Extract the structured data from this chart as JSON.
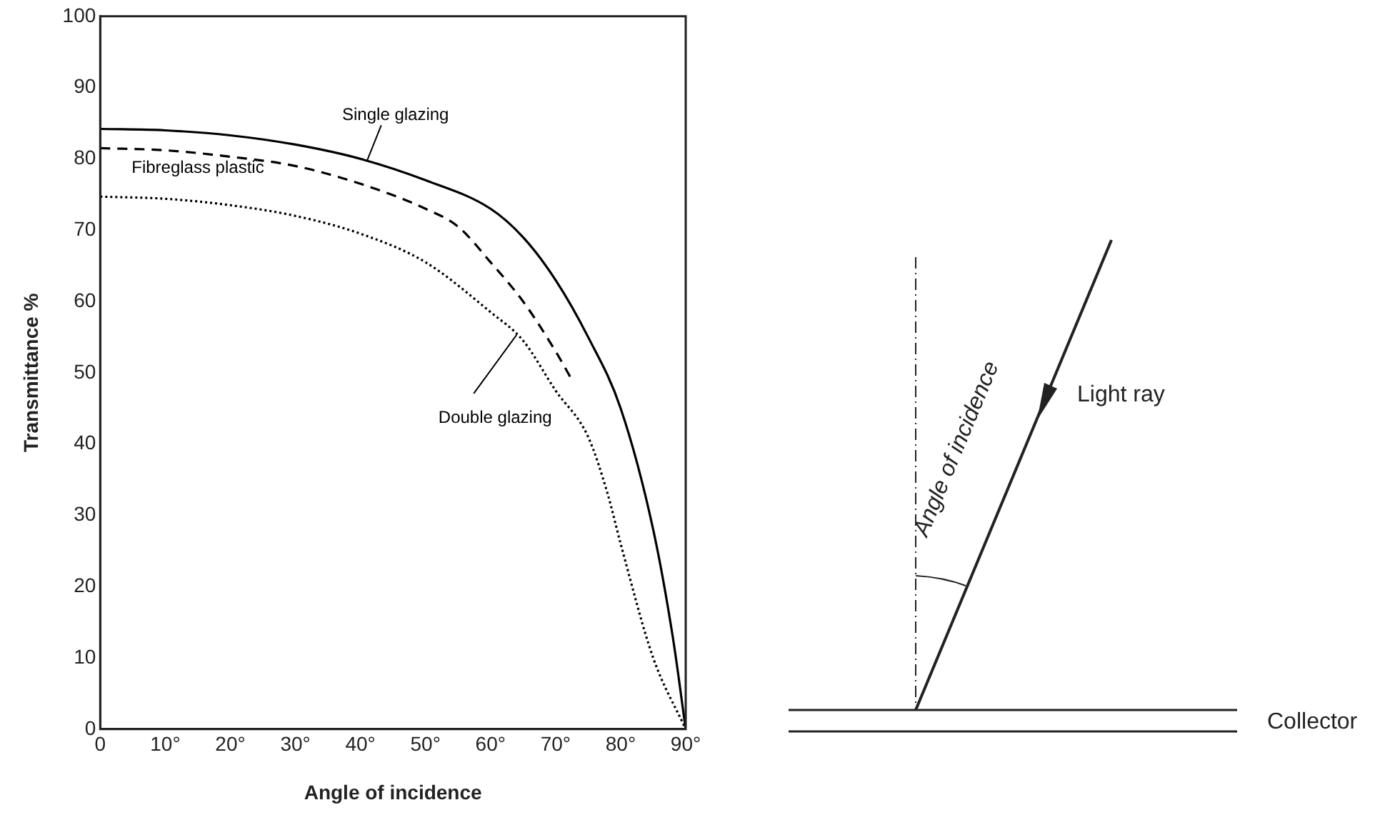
{
  "chart_data": {
    "type": "line",
    "xlabel": "Angle of incidence",
    "ylabel": "Transmittance %",
    "xlim": [
      0,
      90
    ],
    "ylim": [
      0,
      100
    ],
    "xticks": [
      0,
      {
        "value": 10,
        "label": "10°"
      },
      {
        "value": 20,
        "label": "20°"
      },
      {
        "value": 30,
        "label": "30°"
      },
      {
        "value": 40,
        "label": "40°"
      },
      {
        "value": 50,
        "label": "50°"
      },
      {
        "value": 60,
        "label": "60°"
      },
      {
        "value": 70,
        "label": "70°"
      },
      {
        "value": 80,
        "label": "80°"
      },
      {
        "value": 90,
        "label": "90°"
      }
    ],
    "yticks": [
      0,
      10,
      20,
      30,
      40,
      50,
      60,
      70,
      80,
      90,
      100
    ],
    "grid": false,
    "legend": false,
    "marker": "none",
    "series": [
      {
        "name": "Single glazing",
        "color": "#000000",
        "line_style": "solid",
        "x": [
          0,
          10,
          20,
          30,
          40,
          50,
          60,
          65,
          70,
          75,
          80,
          85,
          88,
          90
        ],
        "values": [
          84.2,
          84,
          83.3,
          82,
          80,
          77,
          73,
          69,
          63,
          55,
          45,
          28,
          13,
          0
        ]
      },
      {
        "name": "Fibreglass plastic",
        "color": "#000000",
        "line_style": "dashed",
        "x": [
          0,
          10,
          20,
          30,
          40,
          50,
          55,
          60,
          65,
          70,
          72.5
        ],
        "values": [
          81.5,
          81.2,
          80.3,
          79,
          76.5,
          73,
          70.5,
          65.5,
          60,
          53,
          49
        ]
      },
      {
        "name": "Double glazing",
        "color": "#000000",
        "line_style": "dotted",
        "x": [
          0,
          10,
          20,
          30,
          40,
          50,
          60,
          65,
          70,
          75,
          78,
          80,
          85,
          90
        ],
        "values": [
          74.7,
          74.4,
          73.5,
          72,
          69.5,
          65.5,
          58.5,
          54.5,
          47.5,
          41,
          33,
          26,
          10,
          0
        ]
      }
    ],
    "annotations": [
      "Angle of incidence",
      "Light ray",
      "Collector"
    ]
  }
}
